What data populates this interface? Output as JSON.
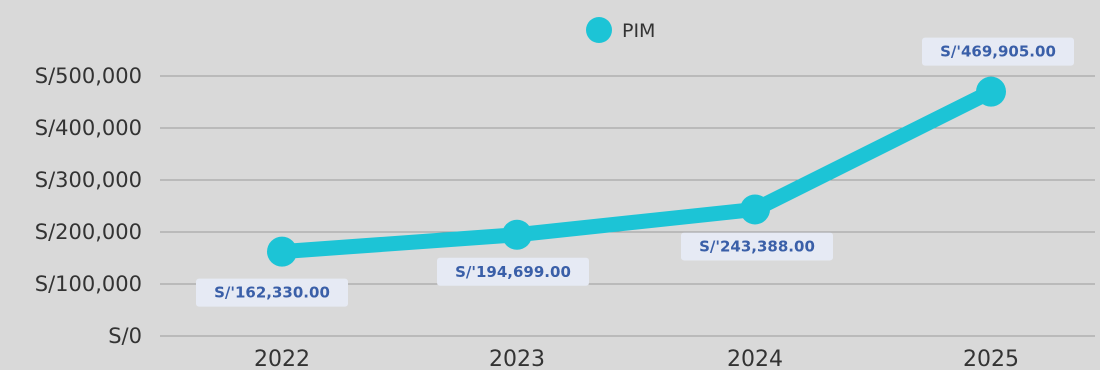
{
  "colors": {
    "background": "#d9d9d9",
    "series": "#1cc4d6",
    "label_text": "#3a5fa8",
    "label_box": "#e6eaf4",
    "grid": "#9a9a9a",
    "axis_text": "#333333"
  },
  "chart_data": {
    "type": "line",
    "categories": [
      "2022",
      "2023",
      "2024",
      "2025"
    ],
    "series": [
      {
        "name": "PIM",
        "values": [
          162330,
          194699,
          243388,
          469905
        ],
        "labels": [
          "S/'162,330.00",
          "S/'194,699.00",
          "S/'243,388.00",
          "S/'469,905.00"
        ]
      }
    ],
    "y_ticks": [
      0,
      100000,
      200000,
      300000,
      400000,
      500000
    ],
    "y_tick_labels": [
      "S/0",
      "S/100,000",
      "S/200,000",
      "S/300,000",
      "S/400,000",
      "S/500,000"
    ],
    "ylim": [
      0,
      520000
    ],
    "legend": "top-center",
    "grid": true
  }
}
